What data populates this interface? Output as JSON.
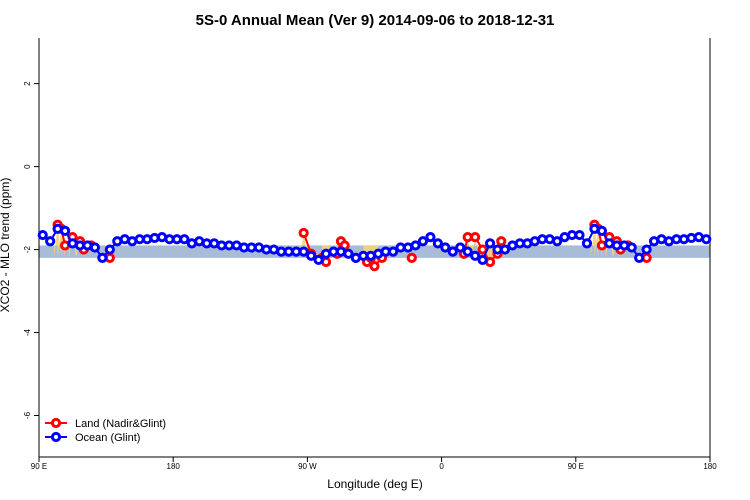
{
  "chart_data": {
    "type": "scatter",
    "title": "5S-0 Annual Mean (Ver 9)   2014-09-06 to 2018-12-31",
    "xlabel": "Longitude (deg E)",
    "ylabel": "XCO2 - MLO trend (ppm)",
    "xlim": [
      90,
      540
    ],
    "ylim": [
      -7,
      3.1
    ],
    "x_ticks": [
      {
        "value": 90,
        "label": "90 E"
      },
      {
        "value": 180,
        "label": "180"
      },
      {
        "value": 270,
        "label": "90 W"
      },
      {
        "value": 360,
        "label": "0"
      },
      {
        "value": 450,
        "label": "90 E"
      },
      {
        "value": 540,
        "label": "180"
      }
    ],
    "y_ticks": [
      {
        "value": 2,
        "label": "2"
      },
      {
        "value": 0,
        "label": "0"
      },
      {
        "value": -2,
        "label": "-2"
      },
      {
        "value": -4,
        "label": "-4"
      },
      {
        "value": -6,
        "label": "-6"
      }
    ],
    "reference_band": {
      "ymin": -2.2,
      "ymax": -1.9,
      "color": "#a8bcd8"
    },
    "fill_color": "#f5d27a",
    "legend_position": "bottom-left",
    "series": [
      {
        "name": "Land (Nadir&Glint)",
        "color": "#ff0000",
        "x": [
          102.5,
          105,
          107.5,
          112.5,
          117.5,
          120,
          125,
          137.5,
          267.5,
          272.5,
          280,
          282.5,
          290,
          292.5,
          295,
          302.5,
          310,
          312.5,
          315,
          320,
          340,
          375,
          377.5,
          382.5,
          387.5,
          392.5,
          397.5,
          400,
          462.5,
          465,
          467.5,
          472.5,
          477.5,
          480,
          485,
          497.5
        ],
        "y": [
          -1.4,
          -1.5,
          -1.9,
          -1.7,
          -1.8,
          -2.0,
          -1.9,
          -2.2,
          -1.6,
          -2.1,
          -2.2,
          -2.3,
          -2.1,
          -1.8,
          -1.9,
          -2.2,
          -2.3,
          -2.2,
          -2.4,
          -2.2,
          -2.2,
          -2.1,
          -1.7,
          -1.7,
          -2.0,
          -2.3,
          -2.1,
          -1.8,
          -1.4,
          -1.5,
          -1.9,
          -1.7,
          -1.8,
          -2.0,
          -1.9,
          -2.2
        ]
      },
      {
        "name": "Ocean (Glint)",
        "color": "#0000ff",
        "x": [
          92.5,
          97.5,
          102.5,
          107.5,
          112.5,
          117.5,
          122.5,
          127.5,
          132.5,
          137.5,
          142.5,
          147.5,
          152.5,
          157.5,
          162.5,
          167.5,
          172.5,
          177.5,
          182.5,
          187.5,
          192.5,
          197.5,
          202.5,
          207.5,
          212.5,
          217.5,
          222.5,
          227.5,
          232.5,
          237.5,
          242.5,
          247.5,
          252.5,
          257.5,
          262.5,
          267.5,
          272.5,
          277.5,
          282.5,
          287.5,
          292.5,
          297.5,
          302.5,
          307.5,
          312.5,
          317.5,
          322.5,
          327.5,
          332.5,
          337.5,
          342.5,
          347.5,
          352.5,
          357.5,
          362.5,
          367.5,
          372.5,
          377.5,
          382.5,
          387.5,
          392.5,
          397.5,
          402.5,
          407.5,
          412.5,
          417.5,
          422.5,
          427.5,
          432.5,
          437.5,
          442.5,
          447.5,
          452.5,
          457.5,
          462.5,
          467.5,
          472.5,
          477.5,
          482.5,
          487.5,
          492.5,
          497.5,
          502.5,
          507.5,
          512.5,
          517.5,
          522.5,
          527.5,
          532.5,
          537.5
        ],
        "y": [
          -1.65,
          -1.8,
          -1.5,
          -1.55,
          -1.85,
          -1.9,
          -1.9,
          -1.95,
          -2.2,
          -2.0,
          -1.8,
          -1.75,
          -1.8,
          -1.75,
          -1.75,
          -1.72,
          -1.7,
          -1.75,
          -1.75,
          -1.75,
          -1.85,
          -1.8,
          -1.85,
          -1.85,
          -1.9,
          -1.9,
          -1.9,
          -1.95,
          -1.95,
          -1.95,
          -2.0,
          -2.0,
          -2.05,
          -2.05,
          -2.05,
          -2.05,
          -2.15,
          -2.25,
          -2.1,
          -2.05,
          -2.05,
          -2.1,
          -2.2,
          -2.15,
          -2.15,
          -2.1,
          -2.05,
          -2.05,
          -1.95,
          -1.95,
          -1.9,
          -1.8,
          -1.7,
          -1.85,
          -1.95,
          -2.05,
          -1.95,
          -2.05,
          -2.15,
          -2.25,
          -1.85,
          -2.0,
          -2.0,
          -1.9,
          -1.85,
          -1.85,
          -1.8,
          -1.75,
          -1.75,
          -1.8,
          -1.7,
          -1.65,
          -1.65,
          -1.85,
          -1.5,
          -1.55,
          -1.85,
          -1.9,
          -1.9,
          -1.95,
          -2.2,
          -2.0,
          -1.8,
          -1.75,
          -1.8,
          -1.75,
          -1.75,
          -1.72,
          -1.7,
          -1.75
        ]
      }
    ]
  }
}
